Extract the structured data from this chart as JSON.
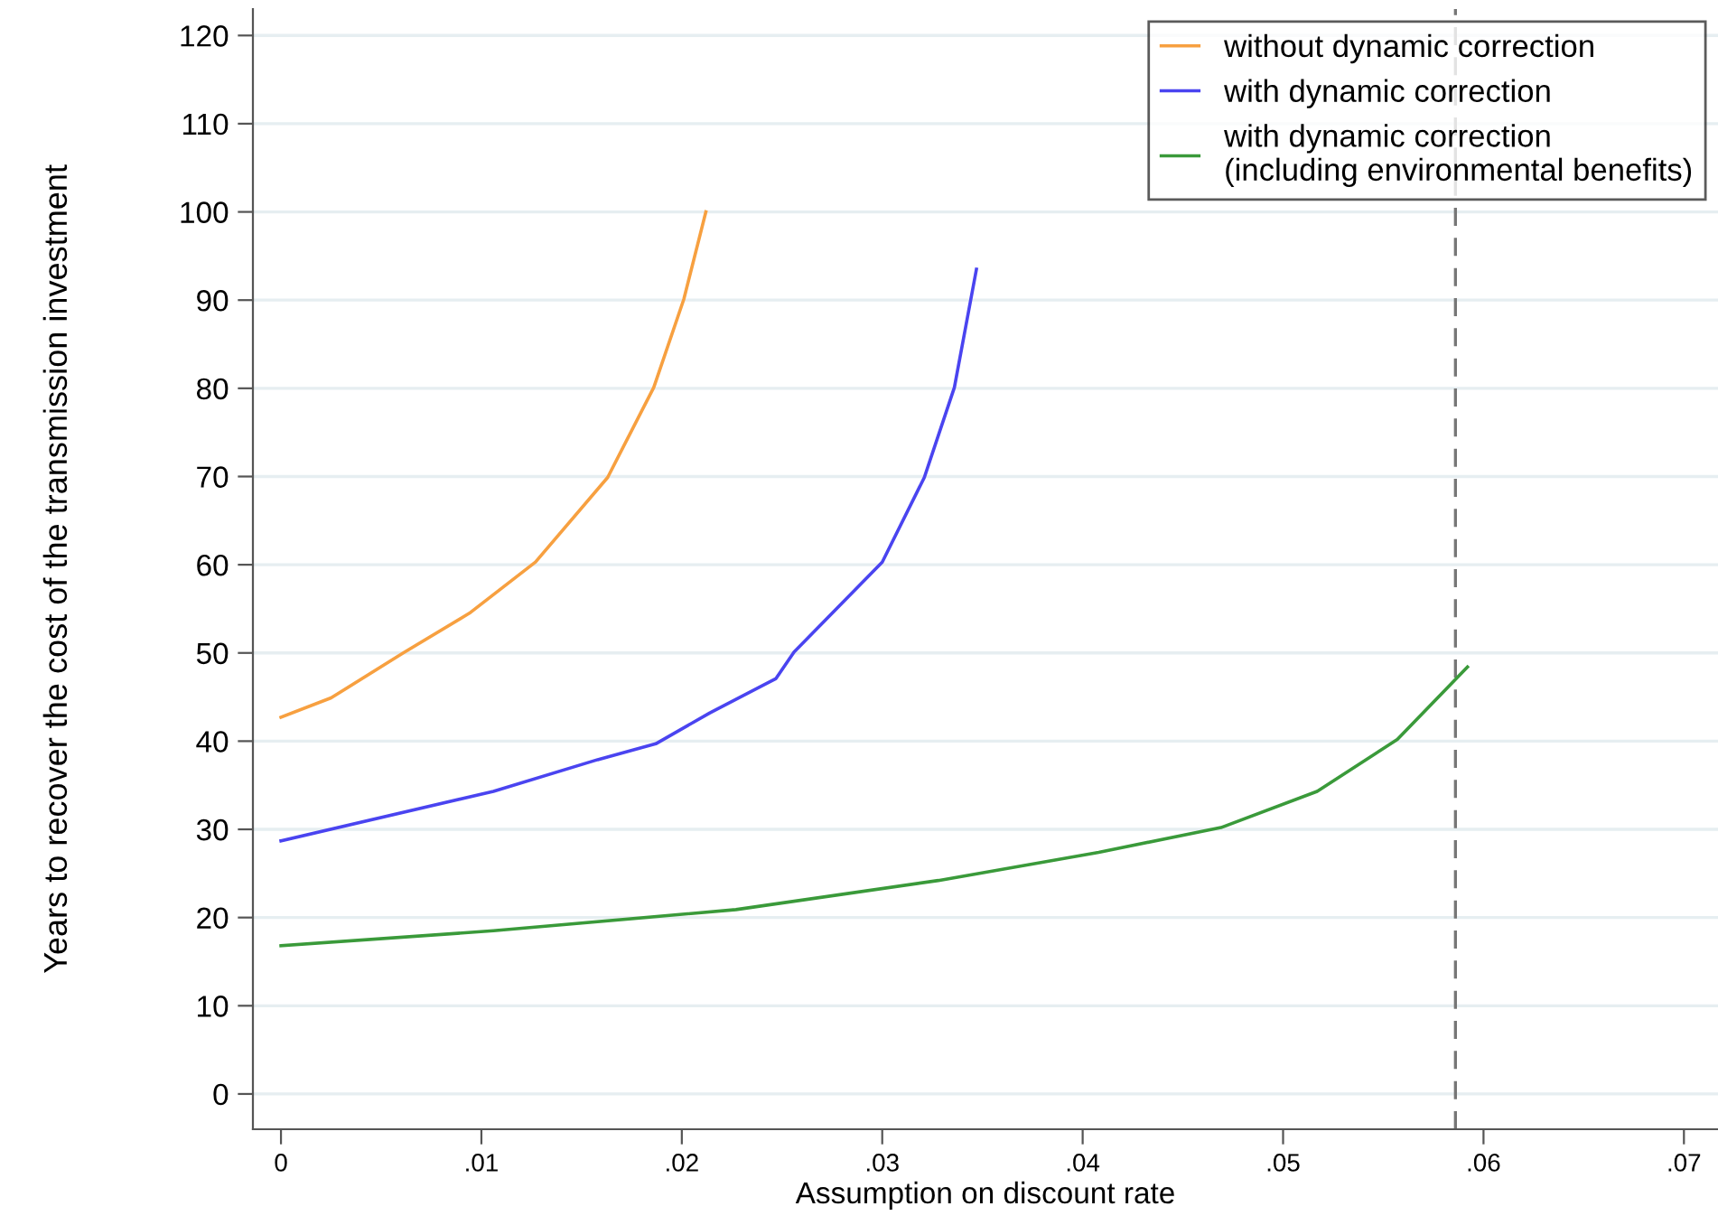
{
  "chart_data": {
    "type": "line",
    "xlabel": "Assumption on discount rate",
    "ylabel": "Years to recover the cost of the transmission investment",
    "xlim": [
      -0.0014,
      0.0717
    ],
    "xticks": [
      {
        "value": 0,
        "label": "0"
      },
      {
        "value": 0.01,
        "label": ".01"
      },
      {
        "value": 0.02,
        "label": ".02"
      },
      {
        "value": 0.03,
        "label": ".03"
      },
      {
        "value": 0.04,
        "label": ".04"
      },
      {
        "value": 0.05,
        "label": ".05"
      },
      {
        "value": 0.06,
        "label": ".06"
      },
      {
        "value": 0.07,
        "label": ".07"
      }
    ],
    "ylim": [
      -4,
      123
    ],
    "yticks": [
      0,
      10,
      20,
      30,
      40,
      50,
      60,
      70,
      80,
      90,
      100,
      110,
      120
    ],
    "grid": "y",
    "legend": "top right",
    "line_style": "solid",
    "series": [
      {
        "name": "without dynamic correction",
        "color": "#f7a040",
        "x": [
          0,
          0.0025,
          0.0061,
          0.0094,
          0.0127,
          0.0163,
          0.0186,
          0.0201,
          0.0212
        ],
        "values": [
          42.7,
          44.9,
          50.0,
          54.5,
          60.3,
          69.9,
          80.1,
          90.1,
          100
        ]
      },
      {
        "name": "with dynamic correction",
        "color": "#4a44f0",
        "x": [
          0,
          0.0106,
          0.0158,
          0.0187,
          0.0214,
          0.0247,
          0.0256,
          0.03,
          0.0321,
          0.0336,
          0.0347
        ],
        "values": [
          28.7,
          34.3,
          37.9,
          39.7,
          43.2,
          47.1,
          50.1,
          60.3,
          69.9,
          80.1,
          93.5
        ]
      },
      {
        "name": "with dynamic correction\n(including environmental benefits)",
        "color": "#3a9a3a",
        "x": [
          0,
          0.0106,
          0.0227,
          0.0328,
          0.0408,
          0.0469,
          0.0517,
          0.0557,
          0.0592
        ],
        "values": [
          16.8,
          18.5,
          20.9,
          24.2,
          27.4,
          30.2,
          34.3,
          40.2,
          48.4
        ]
      }
    ],
    "ref_lines": [
      {
        "axis": "x",
        "value": 0.0586,
        "color": "#777777",
        "line_style": "dashed"
      }
    ]
  }
}
